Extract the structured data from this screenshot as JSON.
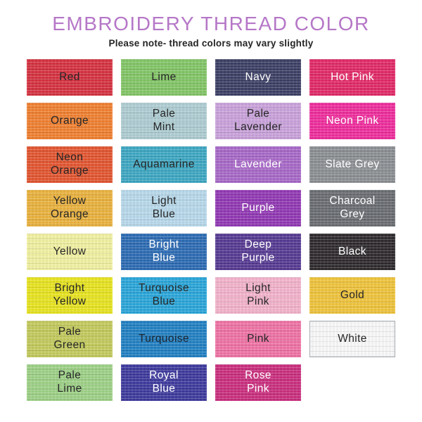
{
  "header": {
    "title": "EMBROIDERY THREAD COLOR",
    "subtitle": "Please note- thread colors may vary slightly",
    "title_color": "#b577c7"
  },
  "text_colors": {
    "dark": "#262626",
    "light": "#ffffff"
  },
  "swatches": [
    {
      "name": "red",
      "label": "Red",
      "color": "#d53240",
      "text_color": "#262626"
    },
    {
      "name": "lime",
      "label": "Lime",
      "color": "#82c566",
      "text_color": "#262626"
    },
    {
      "name": "navy",
      "label": "Navy",
      "color": "#3c3f64",
      "text_color": "#ffffff"
    },
    {
      "name": "hot-pink",
      "label": "Hot Pink",
      "color": "#e12967",
      "text_color": "#ffffff"
    },
    {
      "name": "orange",
      "label": "Orange",
      "color": "#ef7f2f",
      "text_color": "#262626"
    },
    {
      "name": "pale-mint",
      "label": "Pale\nMint",
      "color": "#adccd2",
      "text_color": "#262626"
    },
    {
      "name": "pale-lavender",
      "label": "Pale\nLavender",
      "color": "#c8a1da",
      "text_color": "#262626"
    },
    {
      "name": "neon-pink",
      "label": "Neon Pink",
      "color": "#ee2c9c",
      "text_color": "#ffffff"
    },
    {
      "name": "neon-orange",
      "label": "Neon\nOrange",
      "color": "#e25530",
      "text_color": "#262626"
    },
    {
      "name": "aquamarine",
      "label": "Aquamarine",
      "color": "#3da7c2",
      "text_color": "#262626"
    },
    {
      "name": "lavender",
      "label": "Lavender",
      "color": "#a768c7",
      "text_color": "#ffffff"
    },
    {
      "name": "slate-grey",
      "label": "Slate Grey",
      "color": "#8b8e92",
      "text_color": "#ffffff"
    },
    {
      "name": "yellow-orange",
      "label": "Yellow\nOrange",
      "color": "#e9b13d",
      "text_color": "#262626"
    },
    {
      "name": "light-blue",
      "label": "Light\nBlue",
      "color": "#b7d8ea",
      "text_color": "#262626"
    },
    {
      "name": "purple",
      "label": "Purple",
      "color": "#9138b3",
      "text_color": "#ffffff"
    },
    {
      "name": "charcoal-grey",
      "label": "Charcoal\nGrey",
      "color": "#696c71",
      "text_color": "#ffffff"
    },
    {
      "name": "yellow",
      "label": "Yellow",
      "color": "#f0efa0",
      "text_color": "#262626"
    },
    {
      "name": "bright-blue",
      "label": "Bright\nBlue",
      "color": "#2c6bb3",
      "text_color": "#ffffff"
    },
    {
      "name": "deep-purple",
      "label": "Deep\nPurple",
      "color": "#563a92",
      "text_color": "#ffffff"
    },
    {
      "name": "black",
      "label": "Black",
      "color": "#2e2a2d",
      "text_color": "#ffffff"
    },
    {
      "name": "bright-yellow",
      "label": "Bright\nYellow",
      "color": "#e7e31f",
      "text_color": "#262626"
    },
    {
      "name": "turquoise-blue",
      "label": "Turquoise\nBlue",
      "color": "#29a5d9",
      "text_color": "#262626"
    },
    {
      "name": "light-pink",
      "label": "Light\nPink",
      "color": "#f2b2ca",
      "text_color": "#262626"
    },
    {
      "name": "gold",
      "label": "Gold",
      "color": "#eec33b",
      "text_color": "#262626"
    },
    {
      "name": "pale-green",
      "label": "Pale\nGreen",
      "color": "#c2c95c",
      "text_color": "#262626"
    },
    {
      "name": "turquoise",
      "label": "Turquoise",
      "color": "#2180c2",
      "text_color": "#1c2430"
    },
    {
      "name": "pink",
      "label": "Pink",
      "color": "#ee72a4",
      "text_color": "#262626"
    },
    {
      "name": "white",
      "label": "White",
      "color": "#f8f8f8",
      "text_color": "#262626",
      "border": "#a9aeb3"
    },
    {
      "name": "pale-lime",
      "label": "Pale\nLime",
      "color": "#9dd086",
      "text_color": "#262626"
    },
    {
      "name": "royal-blue",
      "label": "Royal\nBlue",
      "color": "#3e3a9d",
      "text_color": "#ffffff"
    },
    {
      "name": "rose-pink",
      "label": "Rose\nPink",
      "color": "#c92e7e",
      "text_color": "#ffffff"
    }
  ]
}
